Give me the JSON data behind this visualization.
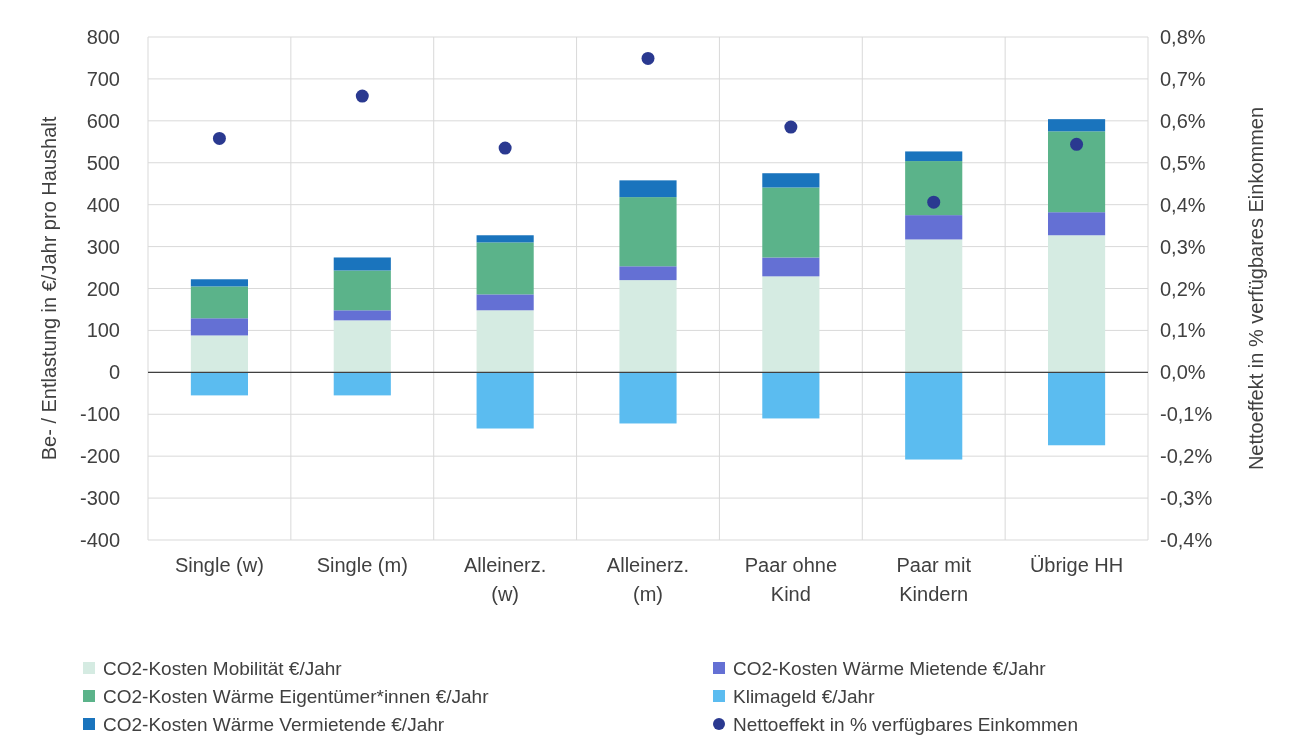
{
  "chart_data": {
    "type": "bar",
    "stacked": true,
    "ylabel": "Be- / Entlastung in €/Jahr pro Haushalt",
    "y2label": "Nettoeffekt in % verfügbares Einkommen",
    "categories": [
      "Single (w)",
      "Single (m)",
      "Alleinerz. (w)",
      "Alleinerz. (m)",
      "Paar ohne Kind",
      "Paar mit Kindern",
      "Übrige HH"
    ],
    "series": [
      {
        "name": "CO2-Kosten Mobilität €/Jahr",
        "color": "#d5ebe2",
        "values": [
          88,
          124,
          148,
          220,
          229,
          317,
          327
        ]
      },
      {
        "name": "CO2-Kosten Wärme Mietende €/Jahr",
        "color": "#6470d4",
        "values": [
          41,
          24,
          38,
          33,
          45,
          58,
          55
        ]
      },
      {
        "name": "CO2-Kosten Wärme Eigentümer*innen €/Jahr",
        "color": "#5bb38a",
        "values": [
          76,
          95,
          124,
          165,
          167,
          129,
          193
        ]
      },
      {
        "name": "Klimageld €/Jahr",
        "color": "#5bbcf0",
        "values": [
          -55,
          -55,
          -134,
          -122,
          -110,
          -208,
          -174
        ]
      },
      {
        "name": "CO2-Kosten Wärme Vermietende €/Jahr",
        "color": "#1a74bd",
        "values": [
          17,
          31,
          17,
          40,
          34,
          23,
          29
        ]
      },
      {
        "name": "Nettoeffekt in % verfügbares Einkommen",
        "type": "scatter",
        "axis": "y2",
        "marker": "circle",
        "color": "#2a3990",
        "values": [
          0.558,
          0.659,
          0.535,
          0.749,
          0.585,
          0.406,
          0.544
        ]
      }
    ],
    "ylim": [
      -400,
      800
    ],
    "yticks": [
      -400,
      -300,
      -200,
      -100,
      0,
      100,
      200,
      300,
      400,
      500,
      600,
      700,
      800
    ],
    "y2lim": [
      -0.4,
      0.8
    ],
    "y2ticks": [
      {
        "value": -0.4,
        "label": "-0,4%"
      },
      {
        "value": -0.3,
        "label": "-0,3%"
      },
      {
        "value": -0.2,
        "label": "-0,2%"
      },
      {
        "value": -0.1,
        "label": "-0,1%"
      },
      {
        "value": 0,
        "label": "0,0%"
      },
      {
        "value": 0.1,
        "label": "0,1%"
      },
      {
        "value": 0.2,
        "label": "0,2%"
      },
      {
        "value": 0.3,
        "label": "0,3%"
      },
      {
        "value": 0.4,
        "label": "0,4%"
      },
      {
        "value": 0.5,
        "label": "0,5%"
      },
      {
        "value": 0.6,
        "label": "0,6%"
      },
      {
        "value": 0.7,
        "label": "0,7%"
      },
      {
        "value": 0.8,
        "label": "0,8%"
      }
    ],
    "grid": true,
    "legend": "bottom"
  }
}
